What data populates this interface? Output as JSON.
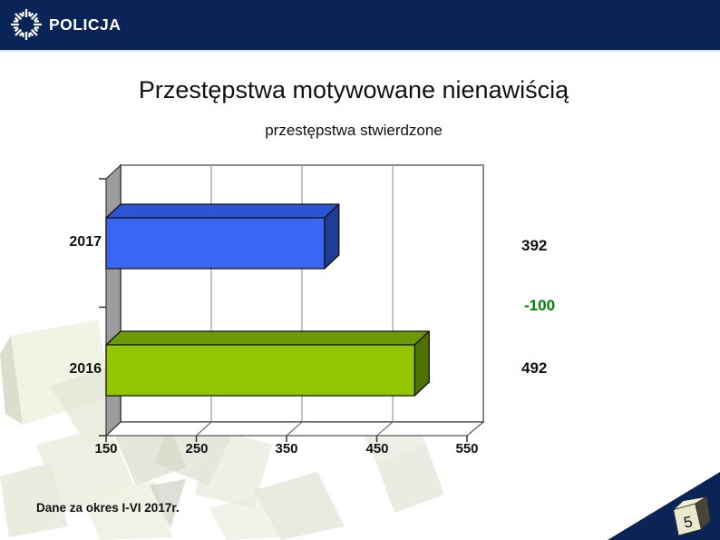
{
  "header": {
    "brand": "POLICJA",
    "background_color": "#0b2457"
  },
  "slide": {
    "title": "Przestępstwa motywowane nienawiścią",
    "footnote": "Dane za okres I-VI 2017r.",
    "page_number": "5"
  },
  "chart_data": {
    "type": "bar",
    "style": "3d-horizontal-bar",
    "orientation": "horizontal",
    "title": "przestępstwa stwierdzone",
    "categories": [
      "2017",
      "2016"
    ],
    "values": [
      392,
      492
    ],
    "value_labels": [
      "392",
      "492"
    ],
    "difference_label": "-100",
    "difference_color": "#008000",
    "xlim": [
      150,
      550
    ],
    "xticks": [
      150,
      250,
      350,
      450,
      550
    ],
    "xtick_labels": [
      "150",
      "250",
      "350",
      "450",
      "550"
    ],
    "grid": true,
    "legend": false,
    "bar_colors": [
      {
        "front": "#3b66f3",
        "top": "#2a55d4",
        "side": "#1e3d96"
      },
      {
        "front": "#92c601",
        "top": "#6d9a02",
        "side": "#4f7204"
      }
    ]
  }
}
